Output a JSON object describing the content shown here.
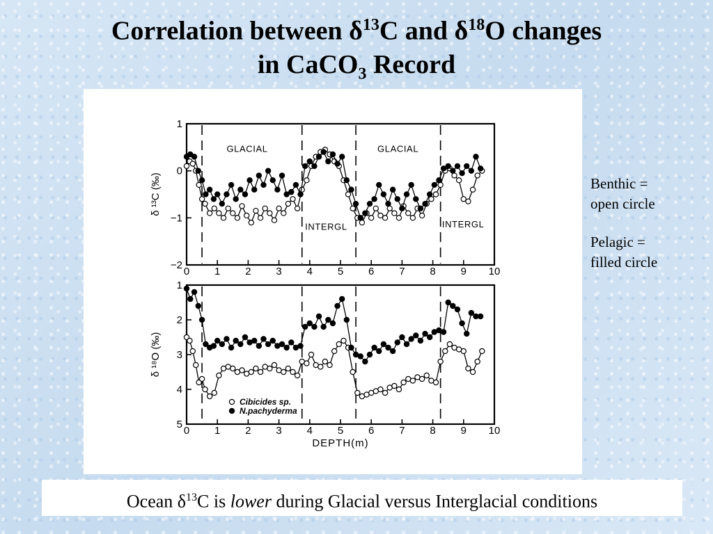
{
  "title": {
    "line1_a": "Correlation between δ",
    "line1_sup1": "13",
    "line1_b": "C and δ",
    "line1_sup2": "18",
    "line1_c": "O changes",
    "line2_a": "in CaCO",
    "line2_sub": "3",
    "line2_b": " Record"
  },
  "notes": {
    "benthic": [
      "Benthic =",
      "open circle"
    ],
    "pelagic": [
      "Pelagic =",
      "filled circle"
    ]
  },
  "caption": {
    "a": "Ocean δ",
    "sup": "13",
    "b": "C is ",
    "em": "lower",
    "c": " during Glacial versus Interglacial conditions"
  },
  "chart_data": [
    {
      "type": "scatter",
      "ylabel": "δ ¹³C (‰)",
      "xlim": [
        0,
        10
      ],
      "ylim": [
        -2,
        1
      ],
      "y_inverted": false,
      "xticks": [
        0,
        1,
        2,
        3,
        4,
        5,
        6,
        7,
        8,
        9,
        10
      ],
      "yticks": [
        1,
        0,
        -1,
        -2
      ],
      "boundaries": [
        0.5,
        3.75,
        5.5,
        8.25
      ],
      "annotations": [
        {
          "text": "GLACIAL",
          "x": 1.3,
          "y": 0.4
        },
        {
          "text": "GLACIAL",
          "x": 6.2,
          "y": 0.4
        },
        {
          "text": "INTERGL",
          "x": 3.85,
          "y": -1.25
        },
        {
          "text": "INTERGL",
          "x": 8.3,
          "y": -1.2
        }
      ],
      "series": [
        {
          "marker": "open",
          "x": [
            0.0,
            0.1,
            0.2,
            0.3,
            0.4,
            0.5,
            0.6,
            0.75,
            0.9,
            1.05,
            1.2,
            1.35,
            1.5,
            1.65,
            1.8,
            1.95,
            2.1,
            2.25,
            2.4,
            2.55,
            2.7,
            2.85,
            3.0,
            3.15,
            3.3,
            3.45,
            3.6,
            3.75,
            3.9,
            4.05,
            4.2,
            4.35,
            4.5,
            4.65,
            4.8,
            4.95,
            5.1,
            5.25,
            5.4,
            5.55,
            5.7,
            5.85,
            6.0,
            6.15,
            6.3,
            6.45,
            6.6,
            6.75,
            6.9,
            7.05,
            7.2,
            7.35,
            7.5,
            7.65,
            7.8,
            7.95,
            8.1,
            8.25,
            8.4,
            8.55,
            8.7,
            8.85,
            9.0,
            9.15,
            9.3,
            9.45,
            9.6
          ],
          "y": [
            0.1,
            0.2,
            0.15,
            0.0,
            -0.3,
            -0.6,
            -0.7,
            -0.9,
            -0.8,
            -0.9,
            -1.0,
            -0.8,
            -0.9,
            -1.0,
            -0.75,
            -0.95,
            -1.1,
            -0.85,
            -1.0,
            -0.8,
            -0.9,
            -1.05,
            -0.8,
            -0.9,
            -0.7,
            -0.6,
            -0.8,
            -0.4,
            -0.2,
            0.1,
            0.3,
            0.4,
            0.45,
            0.35,
            0.2,
            0.1,
            -0.2,
            -0.5,
            -0.8,
            -1.0,
            -1.1,
            -0.9,
            -1.0,
            -0.8,
            -0.95,
            -1.0,
            -0.8,
            -0.9,
            -1.0,
            -0.75,
            -0.9,
            -1.0,
            -0.8,
            -0.95,
            -0.7,
            -0.6,
            -0.5,
            -0.3,
            0.0,
            0.05,
            -0.1,
            -0.2,
            -0.6,
            -0.65,
            -0.4,
            -0.1,
            0.0
          ]
        },
        {
          "marker": "filled",
          "x": [
            0.0,
            0.12,
            0.25,
            0.38,
            0.5,
            0.62,
            0.75,
            0.88,
            1.0,
            1.15,
            1.3,
            1.45,
            1.6,
            1.75,
            1.9,
            2.05,
            2.2,
            2.35,
            2.5,
            2.65,
            2.8,
            2.95,
            3.1,
            3.25,
            3.4,
            3.55,
            3.7,
            3.85,
            4.0,
            4.15,
            4.3,
            4.45,
            4.6,
            4.75,
            4.9,
            5.05,
            5.2,
            5.35,
            5.5,
            5.65,
            5.8,
            5.95,
            6.1,
            6.25,
            6.4,
            6.55,
            6.7,
            6.85,
            7.0,
            7.15,
            7.3,
            7.45,
            7.6,
            7.75,
            7.9,
            8.05,
            8.2,
            8.35,
            8.5,
            8.65,
            8.8,
            8.95,
            9.1,
            9.25,
            9.4,
            9.55
          ],
          "y": [
            0.3,
            0.35,
            0.3,
            0.0,
            -0.2,
            -0.5,
            -0.4,
            -0.6,
            -0.5,
            -0.7,
            -0.5,
            -0.3,
            -0.6,
            -0.4,
            -0.5,
            -0.2,
            -0.4,
            -0.1,
            -0.3,
            0.0,
            -0.2,
            -0.4,
            -0.1,
            -0.5,
            -0.45,
            -0.3,
            -0.5,
            0.1,
            0.2,
            0.1,
            0.3,
            0.4,
            0.2,
            0.35,
            0.15,
            0.3,
            -0.2,
            -0.4,
            -0.7,
            -1.0,
            -0.9,
            -0.7,
            -0.6,
            -0.3,
            -0.5,
            -0.7,
            -0.4,
            -0.6,
            -0.8,
            -0.5,
            -0.3,
            -0.6,
            -0.8,
            -0.7,
            -0.5,
            -0.3,
            -0.2,
            0.05,
            0.1,
            0.0,
            0.1,
            -0.05,
            0.1,
            0.0,
            0.3,
            0.05
          ]
        }
      ]
    },
    {
      "type": "scatter",
      "ylabel": "δ ¹⁸O (‰)",
      "xlabel": "DEPTH(m)",
      "xlim": [
        0,
        10
      ],
      "ylim": [
        1,
        5
      ],
      "y_inverted": true,
      "xticks": [
        0,
        1,
        2,
        3,
        4,
        5,
        6,
        7,
        8,
        9,
        10
      ],
      "yticks": [
        1,
        2,
        3,
        4,
        5
      ],
      "boundaries": [
        0.5,
        3.75,
        5.5,
        8.25
      ],
      "legend": [
        {
          "marker": "open",
          "label": "Cibicides sp."
        },
        {
          "marker": "filled",
          "label": "N.pachyderma"
        }
      ],
      "series": [
        {
          "marker": "open",
          "name": "Cibicides sp.",
          "x": [
            0.0,
            0.1,
            0.2,
            0.3,
            0.4,
            0.5,
            0.6,
            0.75,
            0.9,
            1.05,
            1.2,
            1.35,
            1.5,
            1.65,
            1.8,
            1.95,
            2.1,
            2.25,
            2.4,
            2.55,
            2.7,
            2.85,
            3.0,
            3.15,
            3.3,
            3.45,
            3.6,
            3.75,
            3.9,
            4.05,
            4.2,
            4.35,
            4.5,
            4.65,
            4.8,
            4.95,
            5.1,
            5.25,
            5.4,
            5.55,
            5.7,
            5.85,
            6.0,
            6.15,
            6.3,
            6.45,
            6.6,
            6.75,
            6.9,
            7.05,
            7.2,
            7.35,
            7.5,
            7.65,
            7.8,
            7.95,
            8.1,
            8.25,
            8.4,
            8.55,
            8.7,
            8.85,
            9.0,
            9.15,
            9.3,
            9.45,
            9.6
          ],
          "y": [
            2.5,
            2.6,
            2.9,
            3.3,
            3.8,
            3.7,
            4.0,
            4.2,
            4.1,
            3.6,
            3.4,
            3.35,
            3.4,
            3.5,
            3.45,
            3.55,
            3.5,
            3.4,
            3.5,
            3.35,
            3.4,
            3.3,
            3.45,
            3.5,
            3.4,
            3.5,
            3.6,
            3.2,
            3.25,
            3.0,
            3.3,
            3.35,
            3.2,
            3.3,
            2.9,
            2.7,
            2.6,
            2.8,
            3.5,
            4.1,
            4.2,
            4.15,
            4.1,
            4.05,
            4.0,
            4.1,
            3.95,
            3.9,
            4.0,
            3.8,
            3.7,
            3.75,
            3.65,
            3.7,
            3.6,
            3.75,
            3.8,
            3.2,
            2.9,
            2.7,
            2.8,
            2.85,
            2.9,
            3.4,
            3.5,
            3.2,
            2.9
          ]
        },
        {
          "marker": "filled",
          "name": "N.pachyderma",
          "x": [
            0.0,
            0.12,
            0.25,
            0.38,
            0.5,
            0.62,
            0.75,
            0.88,
            1.0,
            1.15,
            1.3,
            1.45,
            1.6,
            1.75,
            1.9,
            2.05,
            2.2,
            2.35,
            2.5,
            2.65,
            2.8,
            2.95,
            3.1,
            3.25,
            3.4,
            3.55,
            3.7,
            3.85,
            4.0,
            4.15,
            4.3,
            4.45,
            4.6,
            4.75,
            4.9,
            5.05,
            5.2,
            5.35,
            5.5,
            5.65,
            5.8,
            5.95,
            6.1,
            6.25,
            6.4,
            6.55,
            6.7,
            6.85,
            7.0,
            7.15,
            7.3,
            7.45,
            7.6,
            7.75,
            7.9,
            8.05,
            8.2,
            8.35,
            8.5,
            8.65,
            8.8,
            8.95,
            9.1,
            9.25,
            9.4,
            9.55
          ],
          "y": [
            1.1,
            1.4,
            1.2,
            1.6,
            2.0,
            2.7,
            2.8,
            2.75,
            2.6,
            2.7,
            2.55,
            2.8,
            2.6,
            2.7,
            2.5,
            2.65,
            2.6,
            2.75,
            2.55,
            2.7,
            2.6,
            2.75,
            2.7,
            2.8,
            2.65,
            2.8,
            2.75,
            2.2,
            2.1,
            2.2,
            1.9,
            2.2,
            2.0,
            2.1,
            1.6,
            1.4,
            2.0,
            2.8,
            3.0,
            3.05,
            3.2,
            3.0,
            2.8,
            2.9,
            2.7,
            2.8,
            2.9,
            2.65,
            2.5,
            2.7,
            2.55,
            2.45,
            2.6,
            2.4,
            2.5,
            2.35,
            2.3,
            2.35,
            1.5,
            1.6,
            1.7,
            2.1,
            2.4,
            1.8,
            1.9,
            1.9
          ]
        }
      ]
    }
  ]
}
